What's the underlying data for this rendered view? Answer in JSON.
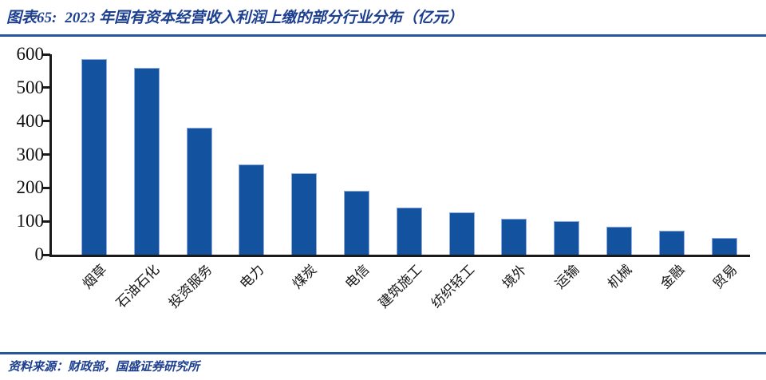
{
  "header": {
    "figure_label": "图表65:",
    "title": "2023 年国有资本经营收入利润上缴的部分行业分布（亿元）"
  },
  "colors": {
    "navy": "#1c3f8f",
    "rule": "#24569b",
    "bar_fill": "#12529e",
    "bar_border": "#8faadc",
    "axis": "#1a1a1a"
  },
  "chart_data": {
    "type": "bar",
    "title": "2023 年国有资本经营收入利润上缴的部分行业分布（亿元）",
    "categories": [
      "烟草",
      "石油石化",
      "投资服务",
      "电力",
      "煤炭",
      "电信",
      "建筑施工",
      "纺织轻工",
      "境外",
      "运输",
      "机械",
      "金融",
      "贸易"
    ],
    "values": [
      585,
      560,
      381,
      270,
      245,
      192,
      142,
      127,
      108,
      100,
      84,
      72,
      50
    ],
    "xlabel": "",
    "ylabel": "",
    "ylim": [
      0,
      600
    ],
    "yticks": [
      0,
      100,
      200,
      300,
      400,
      500,
      600
    ],
    "grid": false,
    "legend": false,
    "bar_color": "#12529e"
  },
  "footer": {
    "source_text": "资料来源：财政部，国盛证券研究所"
  }
}
